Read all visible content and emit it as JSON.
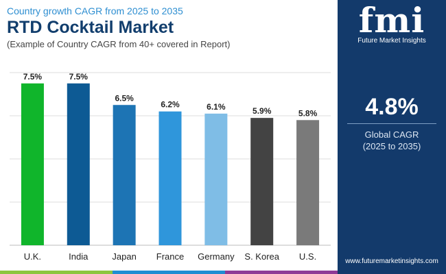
{
  "header": {
    "subtitle": "Country growth CAGR from 2025 to 2035",
    "title": "RTD Cocktail Market",
    "note": "(Example of Country CAGR from 40+ covered in Report)"
  },
  "chart_data": {
    "type": "bar",
    "categories": [
      "U.K.",
      "India",
      "Japan",
      "France",
      "Germany",
      "S. Korea",
      "U.S."
    ],
    "values": [
      7.5,
      7.5,
      6.5,
      6.2,
      6.1,
      5.9,
      5.8
    ],
    "value_labels": [
      "7.5%",
      "7.5%",
      "6.5%",
      "6.2%",
      "6.1%",
      "5.9%",
      "5.8%"
    ],
    "colors": [
      "#10b52b",
      "#0d5a94",
      "#1d74b4",
      "#2f96db",
      "#7fbde6",
      "#434343",
      "#7a7a7a"
    ],
    "ylim": [
      0,
      8
    ],
    "grid": true,
    "xlabel": "",
    "ylabel": "",
    "title": "RTD Cocktail Market"
  },
  "sidebar": {
    "logo_text": "fmi",
    "logo_subtitle": "Future Market Insights",
    "global_cagr_value": "4.8%",
    "global_cagr_label": "Global CAGR",
    "global_cagr_period": "(2025 to 2035)",
    "website": "www.futuremarketinsights.com",
    "background_color": "#133a6b"
  },
  "footer": {
    "bar_colors": [
      "#8dc63f",
      "#1f8ed2",
      "#8e3a96"
    ]
  }
}
